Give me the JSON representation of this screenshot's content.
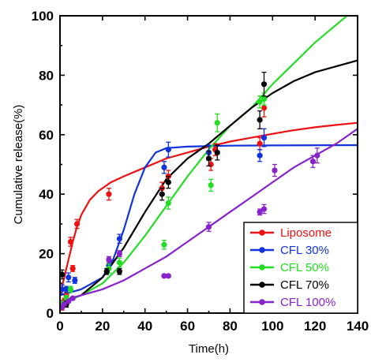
{
  "chart_data": {
    "type": "scatter",
    "xlabel": "Time(h)",
    "ylabel": "Cumulative release(%)",
    "xlim": [
      0,
      140
    ],
    "ylim": [
      0,
      100
    ],
    "xticks": [
      0,
      20,
      40,
      60,
      80,
      100,
      120,
      140
    ],
    "yticks": [
      0,
      20,
      40,
      60,
      80,
      100
    ],
    "grid": false,
    "legend_position": "bottom-right",
    "series": [
      {
        "name": "Liposome",
        "color": "#ee1111",
        "points": [
          {
            "x": 1,
            "y": 2,
            "err": 1
          },
          {
            "x": 2,
            "y": 4,
            "err": 1
          },
          {
            "x": 3,
            "y": 6,
            "err": 1
          },
          {
            "x": 5,
            "y": 24,
            "err": 1.5
          },
          {
            "x": 6,
            "y": 15,
            "err": 1
          },
          {
            "x": 8,
            "y": 30,
            "err": 1.5
          },
          {
            "x": 23,
            "y": 40,
            "err": 2
          },
          {
            "x": 48,
            "y": 42,
            "err": 2
          },
          {
            "x": 51,
            "y": 46,
            "err": 2
          },
          {
            "x": 71,
            "y": 50,
            "err": 2
          },
          {
            "x": 73,
            "y": 55,
            "err": 2
          },
          {
            "x": 94,
            "y": 57,
            "err": 2
          },
          {
            "x": 96,
            "y": 69,
            "err": 3
          }
        ],
        "curve": [
          [
            0,
            6
          ],
          [
            2,
            12
          ],
          [
            4,
            18
          ],
          [
            6,
            24
          ],
          [
            8,
            29
          ],
          [
            10,
            33
          ],
          [
            14,
            38
          ],
          [
            18,
            41
          ],
          [
            24,
            44
          ],
          [
            30,
            46
          ],
          [
            40,
            49
          ],
          [
            50,
            52
          ],
          [
            60,
            54
          ],
          [
            70,
            56
          ],
          [
            80,
            57.7
          ],
          [
            90,
            59
          ],
          [
            100,
            60.3
          ],
          [
            110,
            61.5
          ],
          [
            120,
            62.5
          ],
          [
            130,
            63.3
          ],
          [
            140,
            64
          ]
        ]
      },
      {
        "name": "CFL 30%",
        "color": "#1133dd",
        "points": [
          {
            "x": 1,
            "y": 8,
            "err": 1.5
          },
          {
            "x": 3,
            "y": 8,
            "err": 1
          },
          {
            "x": 4,
            "y": 12,
            "err": 1.5
          },
          {
            "x": 7,
            "y": 11,
            "err": 1
          },
          {
            "x": 23,
            "y": 16,
            "err": 1.5
          },
          {
            "x": 28,
            "y": 25,
            "err": 1.5
          },
          {
            "x": 49,
            "y": 49,
            "err": 2
          },
          {
            "x": 51,
            "y": 55,
            "err": 2.5
          },
          {
            "x": 70,
            "y": 54,
            "err": 2.5
          },
          {
            "x": 94,
            "y": 53,
            "err": 2
          },
          {
            "x": 96,
            "y": 59,
            "err": 3
          }
        ],
        "curve": [
          [
            0,
            6
          ],
          [
            10,
            8
          ],
          [
            20,
            12
          ],
          [
            25,
            18
          ],
          [
            30,
            28
          ],
          [
            35,
            40
          ],
          [
            40,
            49
          ],
          [
            45,
            54
          ],
          [
            50,
            55.5
          ],
          [
            60,
            56
          ],
          [
            80,
            56.3
          ],
          [
            100,
            56.4
          ],
          [
            140,
            56.5
          ]
        ]
      },
      {
        "name": "CFL 50%",
        "color": "#22dd22",
        "points": [
          {
            "x": 1,
            "y": 3,
            "err": 1
          },
          {
            "x": 3,
            "y": 5,
            "err": 1
          },
          {
            "x": 5,
            "y": 8,
            "err": 1
          },
          {
            "x": 23,
            "y": 15,
            "err": 1.5
          },
          {
            "x": 28,
            "y": 17,
            "err": 1.5
          },
          {
            "x": 49,
            "y": 23,
            "err": 1.5
          },
          {
            "x": 51,
            "y": 37,
            "err": 2
          },
          {
            "x": 71,
            "y": 43,
            "err": 2
          },
          {
            "x": 74,
            "y": 64,
            "err": 3
          },
          {
            "x": 94,
            "y": 71,
            "err": 2
          },
          {
            "x": 96,
            "y": 72,
            "err": 2
          }
        ],
        "curve": [
          [
            0,
            3
          ],
          [
            10,
            6
          ],
          [
            20,
            10
          ],
          [
            30,
            17
          ],
          [
            40,
            26
          ],
          [
            50,
            36
          ],
          [
            60,
            46
          ],
          [
            70,
            55
          ],
          [
            80,
            63
          ],
          [
            90,
            69
          ],
          [
            100,
            77
          ],
          [
            110,
            84
          ],
          [
            120,
            91
          ],
          [
            130,
            97
          ],
          [
            140,
            103
          ]
        ]
      },
      {
        "name": "CFL 70%",
        "color": "#000000",
        "points": [
          {
            "x": 1,
            "y": 13,
            "err": 1.5
          },
          {
            "x": 3,
            "y": 3,
            "err": 1
          },
          {
            "x": 22,
            "y": 14,
            "err": 1
          },
          {
            "x": 28,
            "y": 14,
            "err": 1
          },
          {
            "x": 48,
            "y": 40,
            "err": 2
          },
          {
            "x": 51,
            "y": 44,
            "err": 2
          },
          {
            "x": 70,
            "y": 52,
            "err": 2.5
          },
          {
            "x": 74,
            "y": 54,
            "err": 2.5
          },
          {
            "x": 94,
            "y": 65,
            "err": 3
          },
          {
            "x": 96,
            "y": 77,
            "err": 4
          }
        ],
        "curve": [
          [
            0,
            4
          ],
          [
            10,
            6
          ],
          [
            20,
            12
          ],
          [
            30,
            22
          ],
          [
            40,
            34
          ],
          [
            50,
            45
          ],
          [
            60,
            52
          ],
          [
            70,
            57
          ],
          [
            80,
            63
          ],
          [
            90,
            69
          ],
          [
            100,
            74
          ],
          [
            110,
            78
          ],
          [
            120,
            81
          ],
          [
            130,
            83
          ],
          [
            140,
            85
          ]
        ]
      },
      {
        "name": "CFL 100%",
        "color": "#8822cc",
        "points": [
          {
            "x": 1,
            "y": 2,
            "err": 0.5
          },
          {
            "x": 2,
            "y": 3,
            "err": 0.5
          },
          {
            "x": 4,
            "y": 4,
            "err": 0.5
          },
          {
            "x": 6,
            "y": 5,
            "err": 0.5
          },
          {
            "x": 23,
            "y": 18,
            "err": 1
          },
          {
            "x": 28,
            "y": 20,
            "err": 1
          },
          {
            "x": 49,
            "y": 12.5,
            "err": 0.5
          },
          {
            "x": 51,
            "y": 12.5,
            "err": 0.5
          },
          {
            "x": 70,
            "y": 29,
            "err": 1.5
          },
          {
            "x": 94,
            "y": 34,
            "err": 1
          },
          {
            "x": 96,
            "y": 35,
            "err": 1.5
          },
          {
            "x": 101,
            "y": 48,
            "err": 2
          },
          {
            "x": 119,
            "y": 51,
            "err": 2
          },
          {
            "x": 121,
            "y": 53,
            "err": 2.5
          }
        ],
        "curve": [
          [
            0,
            4
          ],
          [
            10,
            6
          ],
          [
            20,
            8
          ],
          [
            30,
            11
          ],
          [
            40,
            15
          ],
          [
            50,
            19
          ],
          [
            60,
            24
          ],
          [
            70,
            29
          ],
          [
            80,
            34
          ],
          [
            90,
            39
          ],
          [
            100,
            44
          ],
          [
            110,
            49
          ],
          [
            120,
            53
          ],
          [
            130,
            57
          ],
          [
            140,
            62
          ]
        ]
      }
    ]
  }
}
